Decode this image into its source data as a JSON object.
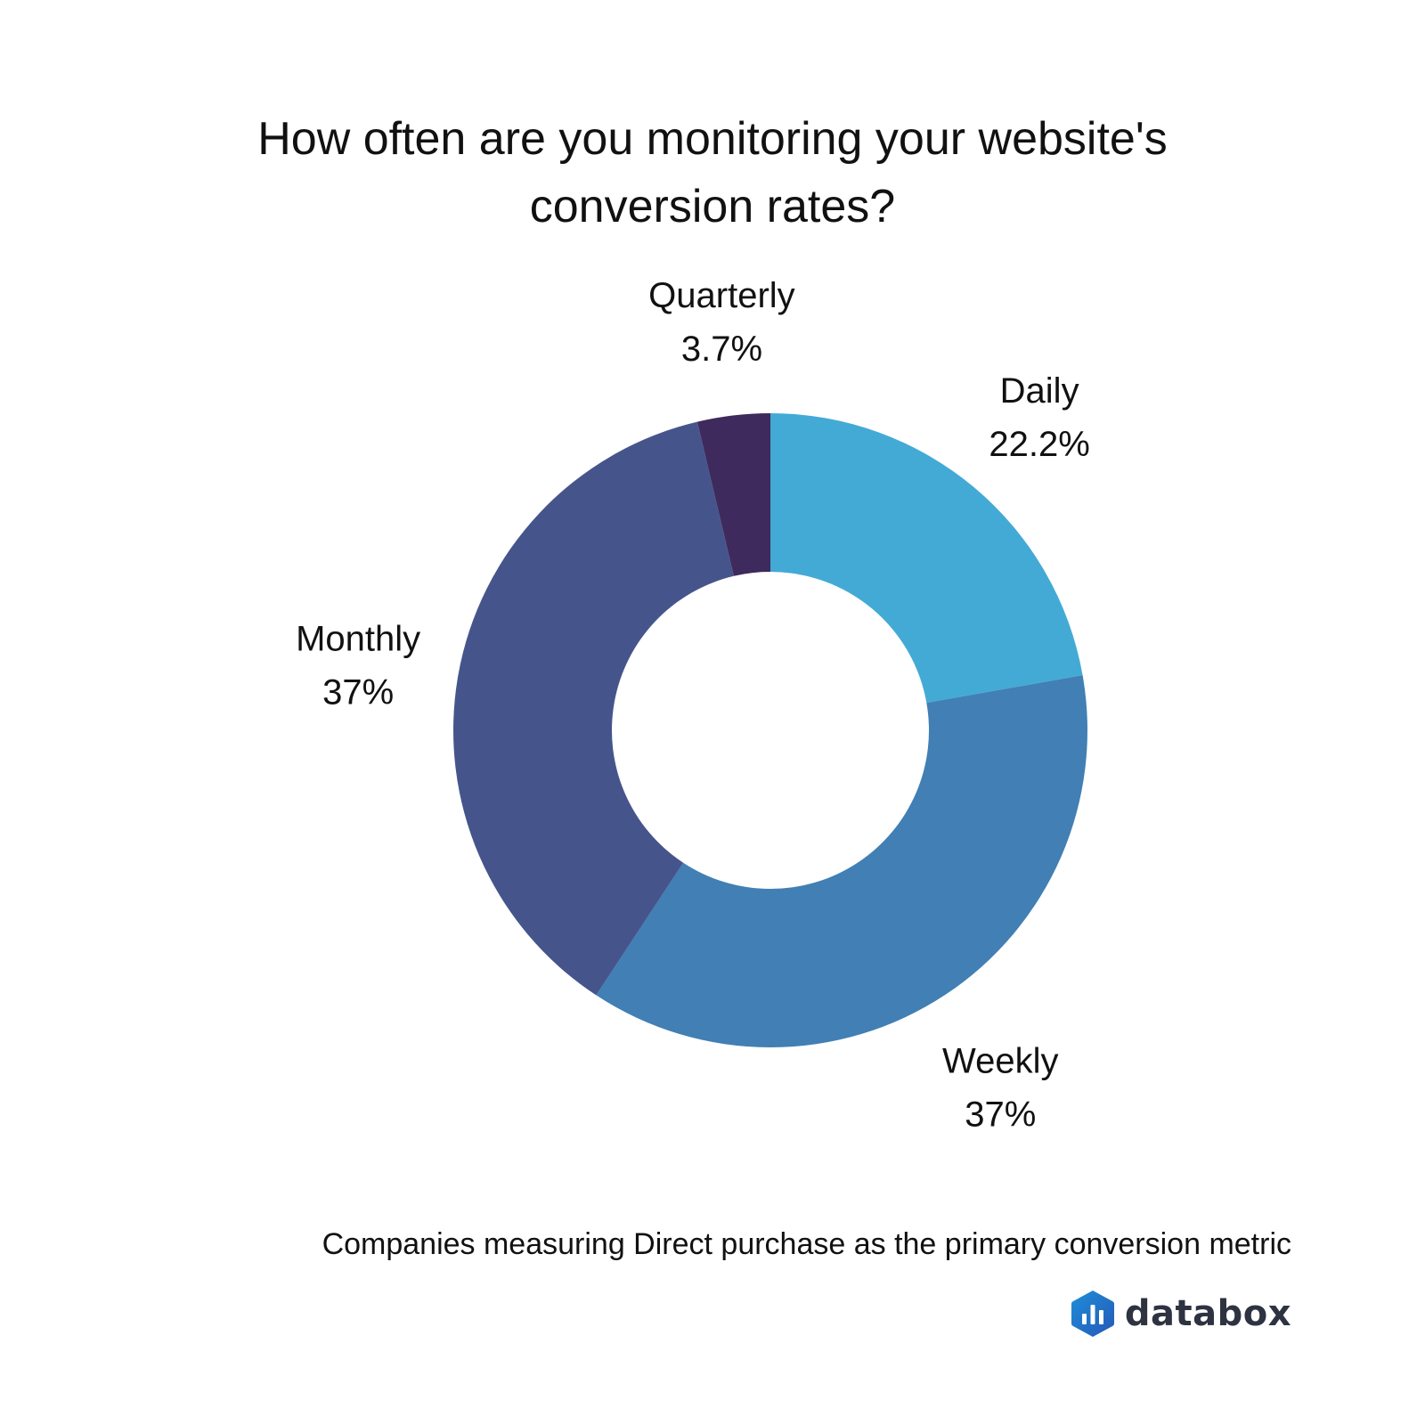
{
  "header": {
    "title_line1": "How often are you monitoring your website's",
    "title_line2": "conversion rates?"
  },
  "footer": {
    "subtitle": "Companies measuring Direct purchase as the primary conversion metric",
    "brand": "databox"
  },
  "chart_data": {
    "type": "pie",
    "variant": "donut",
    "title": "How often are you monitoring your website's conversion rates?",
    "subtitle": "Companies measuring Direct purchase as the primary conversion metric",
    "start_angle_deg": 0,
    "direction": "clockwise",
    "labels_outside": true,
    "slices": [
      {
        "label": "Daily",
        "value": 22.2,
        "value_label": "22.2%",
        "color": "#43aad5"
      },
      {
        "label": "Weekly",
        "value": 37,
        "value_label": "37%",
        "color": "#417fb4"
      },
      {
        "label": "Monthly",
        "value": 37,
        "value_label": "37%",
        "color": "#45558c"
      },
      {
        "label": "Quarterly",
        "value": 3.7,
        "value_label": "3.7%",
        "color": "#3e2a5c"
      }
    ]
  }
}
